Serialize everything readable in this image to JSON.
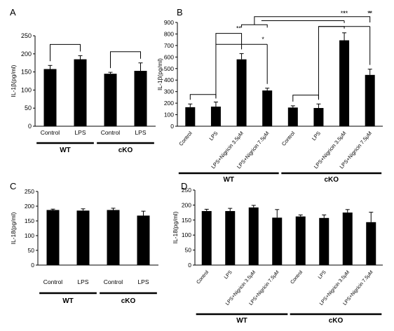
{
  "chart_data": [
    {
      "panel": "A",
      "type": "bar",
      "ylabel": "IL-1β(pg/ml)",
      "ylim": [
        0,
        250
      ],
      "yticks": [
        0,
        50,
        100,
        150,
        200,
        250
      ],
      "categories": [
        "Control",
        "LPS",
        "Control",
        "LPS"
      ],
      "values": [
        158,
        185,
        145,
        153
      ],
      "errors": [
        10,
        10,
        4,
        22
      ],
      "groups": [
        {
          "label": "WT",
          "from": 0,
          "to": 1
        },
        {
          "label": "cKO",
          "from": 2,
          "to": 3
        }
      ],
      "brackets": [
        {
          "from": 0,
          "to": 1,
          "label": ""
        },
        {
          "from": 2,
          "to": 3,
          "label": ""
        }
      ]
    },
    {
      "panel": "B",
      "type": "bar",
      "ylabel": "IL-1β(pg/ml)",
      "ylim": [
        0,
        900
      ],
      "yticks": [
        0,
        100,
        200,
        300,
        400,
        500,
        600,
        700,
        800,
        900
      ],
      "categories": [
        "Control",
        "LPS",
        "LPS+Nigricin 3.5μM",
        "LPS+Nigricin 7.5μM",
        "Control",
        "LPS",
        "LPS+Nigricin 3.5μM",
        "LPS+Nigricin 7.5μM"
      ],
      "values": [
        165,
        170,
        580,
        310,
        162,
        158,
        745,
        445
      ],
      "errors": [
        28,
        40,
        50,
        20,
        15,
        35,
        65,
        50
      ],
      "groups": [
        {
          "label": "WT",
          "from": 0,
          "to": 3
        },
        {
          "label": "cKO",
          "from": 4,
          "to": 7
        }
      ],
      "brackets": [
        {
          "from": 0,
          "to": 1,
          "label": ""
        },
        {
          "from": 4,
          "to": 5,
          "label": ""
        },
        {
          "from": 1,
          "to": 2,
          "label": "**"
        },
        {
          "from": 1,
          "to": 3,
          "label": "*"
        },
        {
          "from": 5,
          "to": 6,
          "label": "***"
        },
        {
          "from": 5,
          "to": 7,
          "label": "**"
        }
      ],
      "group_brackets": [
        {
          "from": [
            2,
            3
          ],
          "to": [
            6,
            7
          ],
          "labels": [
            "*",
            "*"
          ]
        }
      ]
    },
    {
      "panel": "C",
      "type": "bar",
      "ylabel": "IL-18(pg/ml)",
      "ylim": [
        0,
        250
      ],
      "yticks": [
        0,
        50,
        100,
        150,
        200,
        250
      ],
      "categories": [
        "Control",
        "LPS",
        "Control",
        "LPS"
      ],
      "values": [
        187,
        185,
        187,
        168
      ],
      "errors": [
        3,
        6,
        6,
        15
      ],
      "groups": [
        {
          "label": "WT",
          "from": 0,
          "to": 1
        },
        {
          "label": "cKO",
          "from": 2,
          "to": 3
        }
      ],
      "brackets": []
    },
    {
      "panel": "D",
      "type": "bar",
      "ylabel": "IL-18(pg/ml)",
      "ylim": [
        0,
        250
      ],
      "yticks": [
        0,
        50,
        100,
        150,
        200,
        250
      ],
      "categories": [
        "Control",
        "LPS",
        "LPS+Nigricin 3.5μM",
        "LPS+Nigricin 7.5μM",
        "Control",
        "LPS",
        "LPS+Nigricin 3.5μM",
        "LPS+Nigricin 7.5μM"
      ],
      "values": [
        180,
        180,
        192,
        158,
        162,
        157,
        175,
        143
      ],
      "errors": [
        6,
        9,
        7,
        27,
        5,
        10,
        10,
        33
      ],
      "groups": [
        {
          "label": "WT",
          "from": 0,
          "to": 3
        },
        {
          "label": "cKO",
          "from": 4,
          "to": 7
        }
      ],
      "brackets": []
    }
  ]
}
